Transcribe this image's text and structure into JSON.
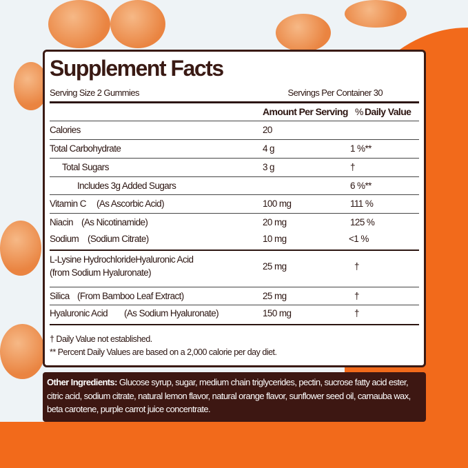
{
  "title": "Supplement Facts",
  "serving_size": "Serving Size 2 Gummies",
  "servings_per_container": "Servings Per Container 30",
  "headers": {
    "amount": "Amount Per Serving",
    "dv_pct": "%",
    "dv": "Daily Value"
  },
  "rows": [
    {
      "name": "Calories",
      "amount": "20",
      "dv": ""
    },
    {
      "name": "Total Carbohydrate",
      "amount": "4 g",
      "dv": "1 %**"
    },
    {
      "name": "Total Sugars",
      "amount": "3 g",
      "dv": "†"
    },
    {
      "name": "Includes 3g Added Sugars",
      "amount": "",
      "dv": "6 %**"
    },
    {
      "name": "Vitamin C",
      "source": "(As Ascorbic Acid)",
      "amount": "100 mg",
      "dv": "111 %"
    },
    {
      "name": "Niacin",
      "source": "(As Nicotinamide)",
      "amount": "20 mg",
      "dv": "125 %"
    },
    {
      "name": "Sodium",
      "source": "(Sodium Citrate)",
      "amount": "10 mg",
      "dv": "<1 %"
    },
    {
      "name": "L-Lysine HydrochlorideHyaluronic Acid",
      "source": "(from Sodium Hyaluronate)",
      "amount": "25 mg",
      "dv": "†"
    },
    {
      "name": "Silica",
      "source": "(From Bamboo Leaf Extract)",
      "amount": "25 mg",
      "dv": "†"
    },
    {
      "name": "Hyaluronic Acid",
      "source": "(As Sodium Hyaluronate)",
      "amount": "150 mg",
      "dv": "†"
    }
  ],
  "footnotes": [
    "† Daily Value not established.",
    "** Percent Daily Values are based on a 2,000 calorie per day diet."
  ],
  "other_ingredients": {
    "label": "Other Ingredients:",
    "text": " Glucose syrup, sugar, medium chain triglycerides, pectin, sucrose fatty acid ester, citric acid, sodium citrate, natural lemon flavor, natural orange flavor, sunflower seed oil, carnauba wax, beta carotene, purple carrot juice concentrate."
  },
  "colors": {
    "brand_brown": "#3d1712",
    "orange": "#f26a1b"
  }
}
